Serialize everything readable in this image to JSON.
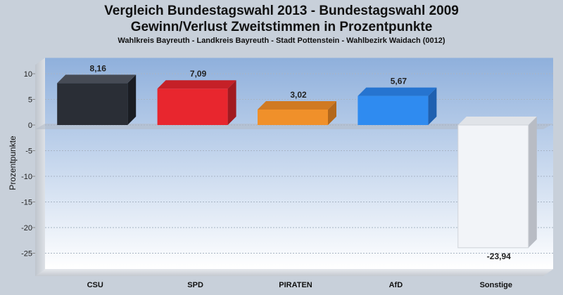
{
  "chart_data": {
    "type": "bar",
    "title_line1": "Vergleich Bundestagswahl 2013 - Bundestagswahl 2009",
    "title_line2": "Gewinn/Verlust Zweitstimmen in Prozentpunkte",
    "subtitle": "Wahlkreis Bayreuth - Landkreis Bayreuth - Stadt Pottenstein - Wahlbezirk Waidach (0012)",
    "ylabel": "Prozentpunkte",
    "xlabel": "",
    "categories": [
      "CSU",
      "SPD",
      "PIRATEN",
      "AfD",
      "Sonstige"
    ],
    "values": [
      8.16,
      7.09,
      3.02,
      5.67,
      -23.94
    ],
    "value_labels": [
      "8,16",
      "7,09",
      "3,02",
      "5,67",
      "-23,94"
    ],
    "colors": [
      "#2a2e36",
      "#e8262e",
      "#f0902a",
      "#2f8bf0",
      "#f2f4f8"
    ],
    "side_colors": [
      "#1a1d23",
      "#a11a20",
      "#b3681c",
      "#1f60b0",
      "#b8bcc4"
    ],
    "top_colors": [
      "#464b55",
      "#c52027",
      "#d07a22",
      "#2674d0",
      "#e0e3e8"
    ],
    "yticks": [
      "10",
      "5",
      "0",
      "-5",
      "-10",
      "-15",
      "-20",
      "-25"
    ],
    "ylim": [
      -27,
      12
    ],
    "grid": true,
    "legend": "none",
    "background_top": "#8fb0dc",
    "background_bottom": "#ffffff"
  }
}
